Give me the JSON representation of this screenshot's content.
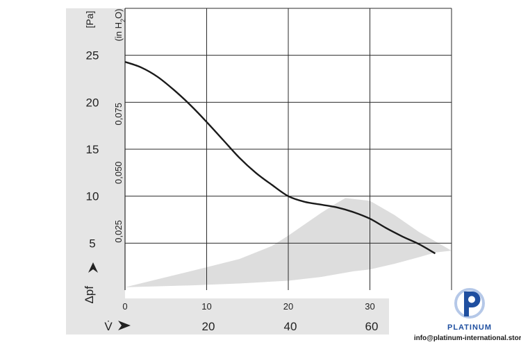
{
  "chart_data": {
    "type": "line",
    "title": "",
    "y_axis": {
      "unit": "[Pa]",
      "label": "Δpf",
      "range": [
        0,
        30
      ],
      "ticks": [
        5,
        10,
        15,
        20,
        25
      ]
    },
    "y_axis_secondary": {
      "unit": "(in H2O)",
      "ticks": [
        "0,025",
        "0,050",
        "0,075"
      ],
      "tick_values": [
        0.025,
        0.05,
        0.075
      ],
      "range": [
        0,
        0.12
      ]
    },
    "x_axis": {
      "ticks": [
        0,
        10,
        20,
        30
      ],
      "range": [
        0,
        40
      ]
    },
    "x_axis_secondary": {
      "label": "V̇",
      "ticks": [
        "20",
        "40",
        "60"
      ],
      "tick_values": [
        20,
        40,
        60
      ]
    },
    "grid": true,
    "series": [
      {
        "color": "#1a1a1a",
        "x": [
          0,
          2,
          4,
          6,
          8,
          10,
          12,
          14,
          16,
          18,
          20,
          22,
          24,
          26,
          28,
          30,
          32,
          34,
          36,
          38
        ],
        "y": [
          24.3,
          23.7,
          22.7,
          21.3,
          19.7,
          17.9,
          16.0,
          14.1,
          12.5,
          11.2,
          10.0,
          9.4,
          9.1,
          8.8,
          8.3,
          7.6,
          6.6,
          5.7,
          4.9,
          3.9
        ]
      }
    ],
    "band": {
      "color": "#dddddd",
      "upper": {
        "x": [
          0,
          8,
          14,
          18,
          20,
          24,
          26,
          27,
          30,
          33,
          36,
          40
        ],
        "y": [
          0.3,
          2.0,
          3.3,
          4.7,
          5.8,
          8.2,
          9.3,
          9.8,
          9.5,
          8.0,
          6.2,
          4.2
        ]
      },
      "lower": {
        "x": [
          0,
          8,
          14,
          18,
          20,
          24,
          26,
          28,
          30,
          33,
          36,
          38
        ],
        "y": [
          0.3,
          0.5,
          0.7,
          0.9,
          1.0,
          1.4,
          1.7,
          2.0,
          2.2,
          2.8,
          3.5,
          4.0
        ]
      }
    }
  },
  "watermark": {
    "brand": "PLATINUM",
    "email": "info@platinum-international.store",
    "logo_colors": {
      "primary": "#1f4fa0",
      "secondary": "#b5c8e8"
    }
  }
}
